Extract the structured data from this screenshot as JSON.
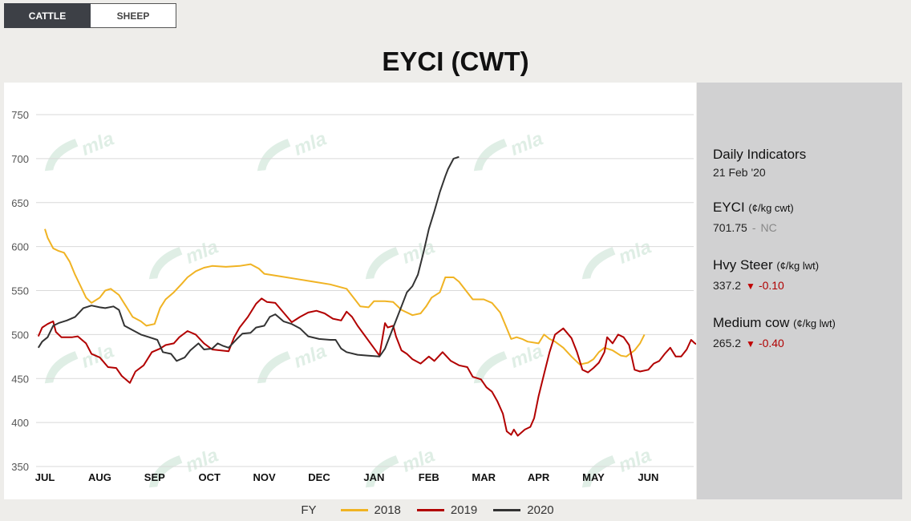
{
  "tabs": [
    {
      "label": "CATTLE",
      "active": true
    },
    {
      "label": "SHEEP",
      "active": false
    }
  ],
  "chart_data": {
    "type": "line",
    "title": "EYCI (CWT)",
    "categories": [
      "JUL",
      "AUG",
      "SEP",
      "OCT",
      "NOV",
      "DEC",
      "JAN",
      "FEB",
      "MAR",
      "APR",
      "MAY",
      "JUN"
    ],
    "yticks": [
      350,
      400,
      450,
      500,
      550,
      600,
      650,
      700,
      750
    ],
    "ylim": [
      350,
      750
    ],
    "grid": true,
    "legend_position": "bottom",
    "legend_title": "FY",
    "watermark": "mla",
    "series": [
      {
        "name": "2018",
        "color": "#f0b323",
        "values": [
          [
            0,
            620
          ],
          [
            0.05,
            610
          ],
          [
            0.15,
            598
          ],
          [
            0.25,
            595
          ],
          [
            0.35,
            593
          ],
          [
            0.45,
            583
          ],
          [
            0.55,
            568
          ],
          [
            0.65,
            555
          ],
          [
            0.75,
            542
          ],
          [
            0.85,
            536
          ],
          [
            1.0,
            542
          ],
          [
            1.1,
            550
          ],
          [
            1.2,
            552
          ],
          [
            1.35,
            545
          ],
          [
            1.5,
            530
          ],
          [
            1.6,
            520
          ],
          [
            1.75,
            515
          ],
          [
            1.85,
            510
          ],
          [
            2.0,
            512
          ],
          [
            2.1,
            530
          ],
          [
            2.2,
            540
          ],
          [
            2.35,
            548
          ],
          [
            2.5,
            558
          ],
          [
            2.6,
            565
          ],
          [
            2.75,
            572
          ],
          [
            2.9,
            576
          ],
          [
            3.05,
            578
          ],
          [
            3.3,
            577
          ],
          [
            3.55,
            578
          ],
          [
            3.75,
            580
          ],
          [
            3.9,
            575
          ],
          [
            4.0,
            569
          ],
          [
            4.3,
            566
          ],
          [
            4.6,
            563
          ],
          [
            4.9,
            560
          ],
          [
            5.2,
            557
          ],
          [
            5.5,
            552
          ],
          [
            5.65,
            540
          ],
          [
            5.75,
            532
          ],
          [
            5.9,
            531
          ],
          [
            6.0,
            538
          ],
          [
            6.2,
            538
          ],
          [
            6.35,
            537
          ],
          [
            6.5,
            528
          ],
          [
            6.7,
            522
          ],
          [
            6.85,
            524
          ],
          [
            6.95,
            532
          ],
          [
            7.05,
            542
          ],
          [
            7.2,
            548
          ],
          [
            7.3,
            565
          ],
          [
            7.45,
            565
          ],
          [
            7.55,
            560
          ],
          [
            7.7,
            548
          ],
          [
            7.8,
            540
          ],
          [
            8.0,
            540
          ],
          [
            8.15,
            536
          ],
          [
            8.3,
            525
          ],
          [
            8.4,
            510
          ],
          [
            8.5,
            495
          ],
          [
            8.6,
            497
          ],
          [
            8.7,
            495
          ],
          [
            8.8,
            492
          ],
          [
            9.0,
            490
          ],
          [
            9.1,
            500
          ],
          [
            9.2,
            495
          ],
          [
            9.3,
            492
          ],
          [
            9.45,
            485
          ],
          [
            9.6,
            475
          ],
          [
            9.75,
            466
          ],
          [
            9.9,
            468
          ],
          [
            10.0,
            472
          ],
          [
            10.1,
            480
          ],
          [
            10.2,
            485
          ],
          [
            10.35,
            482
          ],
          [
            10.5,
            476
          ],
          [
            10.6,
            475
          ],
          [
            10.75,
            482
          ],
          [
            10.85,
            490
          ],
          [
            10.93,
            500
          ]
        ]
      },
      {
        "name": "2019",
        "color": "#b20000",
        "values": [
          [
            -0.12,
            498
          ],
          [
            -0.05,
            508
          ],
          [
            0.05,
            512
          ],
          [
            0.15,
            515
          ],
          [
            0.2,
            503
          ],
          [
            0.3,
            497
          ],
          [
            0.5,
            497
          ],
          [
            0.6,
            498
          ],
          [
            0.75,
            490
          ],
          [
            0.85,
            478
          ],
          [
            1.0,
            474
          ],
          [
            1.15,
            463
          ],
          [
            1.3,
            462
          ],
          [
            1.4,
            453
          ],
          [
            1.55,
            445
          ],
          [
            1.65,
            458
          ],
          [
            1.8,
            465
          ],
          [
            1.95,
            480
          ],
          [
            2.1,
            484
          ],
          [
            2.2,
            488
          ],
          [
            2.35,
            490
          ],
          [
            2.45,
            497
          ],
          [
            2.6,
            504
          ],
          [
            2.75,
            500
          ],
          [
            2.9,
            490
          ],
          [
            3.05,
            483
          ],
          [
            3.2,
            482
          ],
          [
            3.35,
            481
          ],
          [
            3.45,
            497
          ],
          [
            3.55,
            508
          ],
          [
            3.7,
            520
          ],
          [
            3.85,
            535
          ],
          [
            3.95,
            541
          ],
          [
            4.05,
            537
          ],
          [
            4.2,
            536
          ],
          [
            4.35,
            525
          ],
          [
            4.5,
            514
          ],
          [
            4.65,
            520
          ],
          [
            4.8,
            525
          ],
          [
            4.95,
            527
          ],
          [
            5.1,
            524
          ],
          [
            5.25,
            518
          ],
          [
            5.4,
            516
          ],
          [
            5.5,
            526
          ],
          [
            5.6,
            520
          ],
          [
            5.7,
            510
          ],
          [
            6.1,
            476
          ],
          [
            6.2,
            513
          ],
          [
            6.25,
            508
          ],
          [
            6.35,
            510
          ],
          [
            6.4,
            498
          ],
          [
            6.5,
            482
          ],
          [
            6.6,
            478
          ],
          [
            6.7,
            472
          ],
          [
            6.85,
            467
          ],
          [
            7.0,
            475
          ],
          [
            7.1,
            470
          ],
          [
            7.25,
            480
          ],
          [
            7.4,
            470
          ],
          [
            7.55,
            465
          ],
          [
            7.7,
            463
          ],
          [
            7.8,
            452
          ],
          [
            7.95,
            449
          ],
          [
            8.05,
            440
          ],
          [
            8.15,
            435
          ],
          [
            8.25,
            424
          ],
          [
            8.35,
            410
          ],
          [
            8.42,
            390
          ],
          [
            8.5,
            386
          ],
          [
            8.55,
            392
          ],
          [
            8.62,
            385
          ],
          [
            8.75,
            392
          ],
          [
            8.85,
            395
          ],
          [
            8.92,
            405
          ],
          [
            9.0,
            430
          ],
          [
            9.1,
            455
          ],
          [
            9.2,
            480
          ],
          [
            9.3,
            500
          ],
          [
            9.45,
            507
          ],
          [
            9.6,
            496
          ],
          [
            9.7,
            480
          ],
          [
            9.8,
            460
          ],
          [
            9.9,
            457
          ],
          [
            10.0,
            462
          ],
          [
            10.1,
            468
          ],
          [
            10.2,
            480
          ],
          [
            10.25,
            497
          ],
          [
            10.35,
            490
          ],
          [
            10.45,
            500
          ],
          [
            10.55,
            497
          ],
          [
            10.65,
            488
          ],
          [
            10.75,
            460
          ],
          [
            10.85,
            458
          ],
          [
            11.0,
            460
          ],
          [
            11.1,
            467
          ],
          [
            11.2,
            470
          ],
          [
            11.3,
            478
          ],
          [
            11.4,
            485
          ],
          [
            11.5,
            475
          ],
          [
            11.6,
            475
          ],
          [
            11.7,
            483
          ],
          [
            11.78,
            494
          ],
          [
            11.85,
            490
          ],
          [
            11.95,
            487
          ],
          [
            12.05,
            480
          ],
          [
            12.12,
            487
          ]
        ]
      },
      {
        "name": "2020",
        "color": "#333333",
        "values": [
          [
            -0.12,
            485
          ],
          [
            -0.05,
            492
          ],
          [
            0.05,
            497
          ],
          [
            0.15,
            510
          ],
          [
            0.25,
            513
          ],
          [
            0.4,
            516
          ],
          [
            0.55,
            520
          ],
          [
            0.7,
            530
          ],
          [
            0.85,
            533
          ],
          [
            1.0,
            531
          ],
          [
            1.1,
            530
          ],
          [
            1.25,
            532
          ],
          [
            1.35,
            528
          ],
          [
            1.45,
            510
          ],
          [
            1.6,
            505
          ],
          [
            1.75,
            500
          ],
          [
            1.9,
            497
          ],
          [
            2.05,
            494
          ],
          [
            2.15,
            480
          ],
          [
            2.3,
            478
          ],
          [
            2.4,
            470
          ],
          [
            2.55,
            474
          ],
          [
            2.65,
            482
          ],
          [
            2.8,
            490
          ],
          [
            2.9,
            483
          ],
          [
            3.05,
            484
          ],
          [
            3.15,
            490
          ],
          [
            3.25,
            487
          ],
          [
            3.35,
            485
          ],
          [
            3.5,
            495
          ],
          [
            3.6,
            501
          ],
          [
            3.75,
            502
          ],
          [
            3.85,
            508
          ],
          [
            4.0,
            510
          ],
          [
            4.1,
            520
          ],
          [
            4.2,
            523
          ],
          [
            4.35,
            515
          ],
          [
            4.5,
            512
          ],
          [
            4.65,
            507
          ],
          [
            4.8,
            498
          ],
          [
            5.0,
            495
          ],
          [
            5.2,
            494
          ],
          [
            5.3,
            494
          ],
          [
            5.4,
            484
          ],
          [
            5.5,
            480
          ],
          [
            5.7,
            477
          ],
          [
            5.9,
            476
          ],
          [
            6.1,
            475
          ],
          [
            6.2,
            484
          ],
          [
            6.3,
            500
          ],
          [
            6.4,
            516
          ],
          [
            6.5,
            532
          ],
          [
            6.6,
            548
          ],
          [
            6.7,
            555
          ],
          [
            6.8,
            568
          ],
          [
            6.9,
            593
          ],
          [
            7.0,
            620
          ],
          [
            7.1,
            640
          ],
          [
            7.2,
            662
          ],
          [
            7.3,
            680
          ],
          [
            7.35,
            688
          ],
          [
            7.45,
            700
          ],
          [
            7.55,
            702
          ]
        ]
      }
    ]
  },
  "side_panel": {
    "heading": "Daily Indicators",
    "date": "21 Feb '20",
    "indicators": [
      {
        "name": "EYCI",
        "unit": "(¢/kg cwt)",
        "value": "701.75",
        "separator": "-",
        "change": "NC"
      },
      {
        "name": "Hvy Steer",
        "unit": "(¢/kg lwt)",
        "value": "337.2",
        "arrow": "▼",
        "change": "-0.10"
      },
      {
        "name": "Medium cow",
        "unit": "(¢/kg lwt)",
        "value": "265.2",
        "arrow": "▼",
        "change": "-0.40"
      }
    ]
  }
}
